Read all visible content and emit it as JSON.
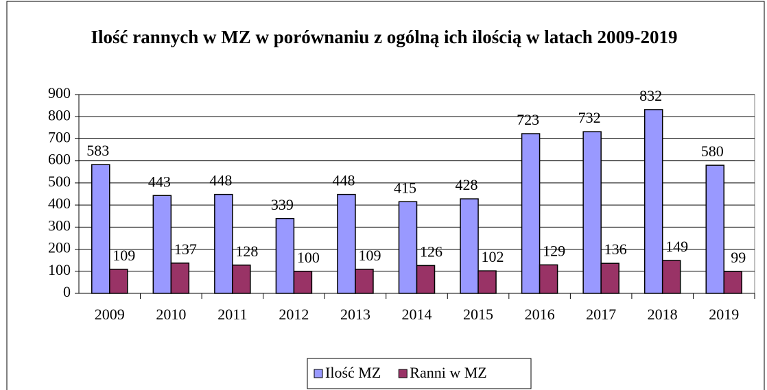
{
  "chart_data": {
    "type": "bar",
    "title": "Ilość rannych w MZ w porównaniu z ogólną ich ilością w latach 2009-2019",
    "categories": [
      "2009",
      "2010",
      "2011",
      "2012",
      "2013",
      "2014",
      "2015",
      "2016",
      "2017",
      "2018",
      "2019"
    ],
    "series": [
      {
        "name": "Ilość MZ",
        "color": "#9999ff",
        "values": [
          583,
          443,
          448,
          339,
          448,
          415,
          428,
          723,
          732,
          832,
          580
        ]
      },
      {
        "name": "Ranni w MZ",
        "color": "#993366",
        "values": [
          109,
          137,
          128,
          100,
          109,
          126,
          102,
          129,
          136,
          149,
          99
        ]
      }
    ],
    "ylim": [
      0,
      900
    ],
    "yticks": [
      0,
      100,
      200,
      300,
      400,
      500,
      600,
      700,
      800,
      900
    ],
    "grid": true,
    "legend": "bottom"
  }
}
